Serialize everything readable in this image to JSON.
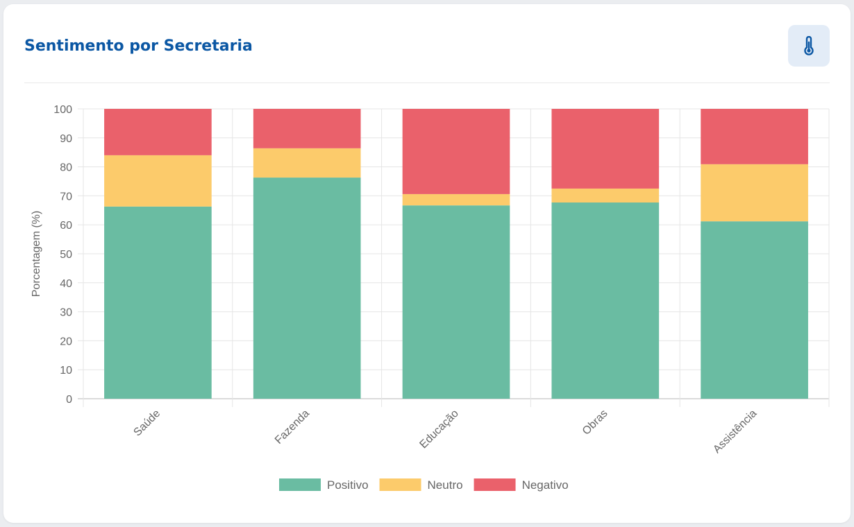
{
  "card": {
    "title": "Sentimento por Secretaria",
    "action_icon": "thermometer-icon"
  },
  "colors": {
    "accent": "#0b57a4",
    "icon_bg": "#e3ecf7"
  },
  "chart_data": {
    "type": "bar",
    "stacked": true,
    "title": "Sentimento por Secretaria",
    "xlabel": "",
    "ylabel": "Porcentagem (%)",
    "ylim": [
      0,
      100
    ],
    "yticks": [
      0,
      10,
      20,
      30,
      40,
      50,
      60,
      70,
      80,
      90,
      100
    ],
    "ytick_labels": [
      "0",
      "10",
      "20",
      "30",
      "40",
      "50",
      "60",
      "70",
      "80",
      "90",
      "100"
    ],
    "categories": [
      "Saúde",
      "Fazenda",
      "Educação",
      "Obras",
      "Assistência"
    ],
    "series": [
      {
        "name": "Positivo",
        "color": "#6abca2",
        "values": [
          66.3,
          76.3,
          66.7,
          67.7,
          61.2
        ]
      },
      {
        "name": "Neutro",
        "color": "#fccb6b",
        "values": [
          17.7,
          10.1,
          3.9,
          4.8,
          19.7
        ]
      },
      {
        "name": "Negativo",
        "color": "#ea616b",
        "values": [
          16.0,
          13.6,
          29.4,
          27.5,
          19.1
        ]
      }
    ],
    "grid": true,
    "legend": "bottom"
  }
}
